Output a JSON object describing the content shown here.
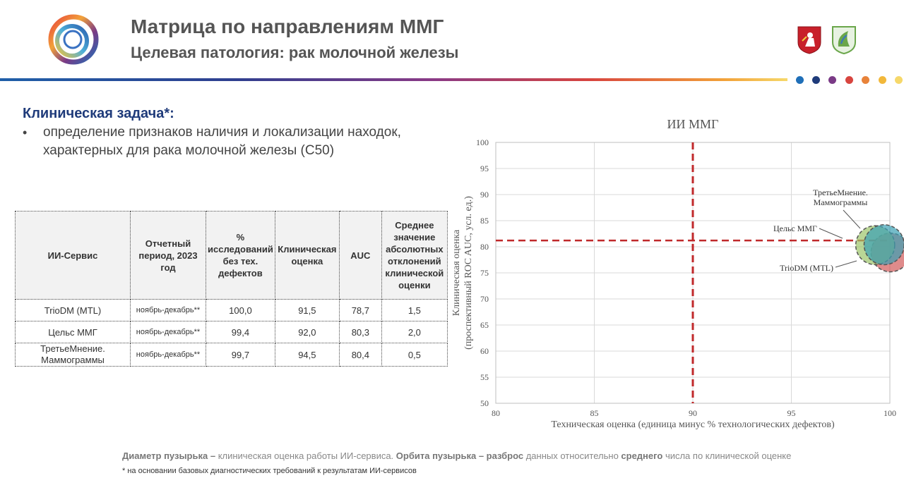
{
  "header": {
    "title": "Матрица по направлениям ММГ",
    "subtitle": "Целевая патология: рак молочной железы",
    "logo_icon": "ring-logo-icon",
    "emblems": [
      "moscow-coat-of-arms-icon",
      "department-emblem-icon"
    ],
    "dot_colors": [
      "#1f6fb8",
      "#1f3b7a",
      "#7a3a86",
      "#d8453f",
      "#e8833a",
      "#f2b83a",
      "#f6d86a"
    ]
  },
  "task": {
    "heading": "Клиническая задача*:",
    "bullet": "•",
    "text": "определение признаков наличия и локализации находок, характерных для рака молочной железы (С50)"
  },
  "table": {
    "headers": [
      "ИИ-Сервис",
      "Отчетный период, 2023 год",
      "% исследований без тех. дефектов",
      "Клиническая оценка",
      "AUC",
      "Среднее значение абсолютных отклонений клинической оценки"
    ],
    "rows": [
      [
        "TrioDM (MTL)",
        "ноябрь-декабрь**",
        "100,0",
        "91,5",
        "78,7",
        "1,5"
      ],
      [
        "Цельс ММГ",
        "ноябрь-декабрь**",
        "99,4",
        "92,0",
        "80,3",
        "2,0"
      ],
      [
        "ТретьеМнение. Маммограммы",
        "ноябрь-декабрь**",
        "99,7",
        "94,5",
        "80,4",
        "0,5"
      ]
    ]
  },
  "chart_data": {
    "type": "scatter",
    "title": "ИИ ММГ",
    "xlabel": "Техническая оценка (единица минус % технологических дефектов)",
    "ylabel_line1": "Клиническая оценка",
    "ylabel_line2": "(проспективный ROC AUC, усл. ед.)",
    "xlim": [
      80,
      100
    ],
    "ylim": [
      50,
      100
    ],
    "xticks": [
      80,
      85,
      90,
      95,
      100
    ],
    "yticks": [
      50,
      55,
      60,
      65,
      70,
      75,
      80,
      85,
      90,
      95,
      100
    ],
    "grid": true,
    "reference_lines": {
      "x": 90,
      "y": 81.2
    },
    "series": [
      {
        "name": "TrioDM (MTL)",
        "x": 100.0,
        "y": 78.7,
        "bubble": 91.5,
        "orbit": 1.5,
        "color": "#d25a5a"
      },
      {
        "name": "Цельс ММГ",
        "x": 99.4,
        "y": 80.3,
        "bubble": 92.0,
        "orbit": 2.0,
        "color": "#9cc46a"
      },
      {
        "name": "ТретьеМнение. Маммограммы",
        "x": 99.7,
        "y": 80.4,
        "bubble": 94.5,
        "orbit": 0.5,
        "color": "#3aa0b4"
      }
    ],
    "labels": [
      "ТретьеМнение.",
      "Маммограммы",
      "Цельс ММГ",
      "TrioDM (MTL)"
    ]
  },
  "caption": {
    "p1": "Диаметр пузырька –",
    "p2": " клиническая оценка работы ИИ-сервиса. ",
    "p3": "Орбита пузырька – разброс",
    "p4": " данных относительно ",
    "p5": "среднего",
    "p6": " числа по клинической оценке"
  },
  "footnote": "* на основании базовых диагностических требований к результатам ИИ-сервисов"
}
